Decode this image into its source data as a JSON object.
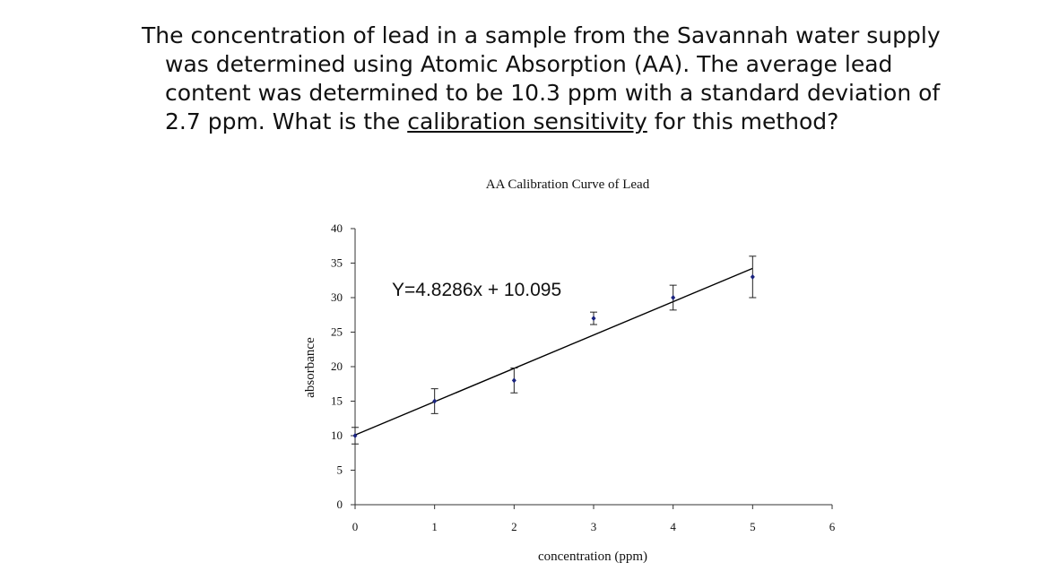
{
  "question": {
    "line1": "The concentration of lead in a sample from the Savannah water supply",
    "line2": "was determined using Atomic Absorption (AA).  The average lead",
    "line3": "content was determined to be 10.3 ppm with a standard deviation of",
    "line4_before": "2.7 ppm.  What is the ",
    "line4_underlined": "calibration sensitivity",
    "line4_after": " for this method?"
  },
  "chart_data": {
    "type": "scatter",
    "title": "AA Calibration Curve of Lead",
    "xlabel": "concentration (ppm)",
    "ylabel": "absorbance",
    "xlim": [
      0,
      6
    ],
    "ylim": [
      0,
      40
    ],
    "xticks": [
      0,
      1,
      2,
      3,
      4,
      5,
      6
    ],
    "yticks": [
      0,
      5,
      10,
      15,
      20,
      25,
      30,
      35,
      40
    ],
    "grid": false,
    "points": [
      {
        "x": 0,
        "y": 10,
        "err": 1.2
      },
      {
        "x": 1,
        "y": 15,
        "err": 1.8
      },
      {
        "x": 2,
        "y": 18,
        "err": 1.8
      },
      {
        "x": 3,
        "y": 27,
        "err": 0.9
      },
      {
        "x": 4,
        "y": 30,
        "err": 1.8
      },
      {
        "x": 5,
        "y": 33,
        "err": 3.0
      }
    ],
    "trendline": {
      "slope": 4.8286,
      "intercept": 10.095,
      "x_range": [
        0,
        5
      ]
    },
    "annotation": "Y=4.8286x + 10.095",
    "colors": {
      "points": "#1a237e",
      "line": "#000000",
      "axes": "#333333"
    }
  }
}
